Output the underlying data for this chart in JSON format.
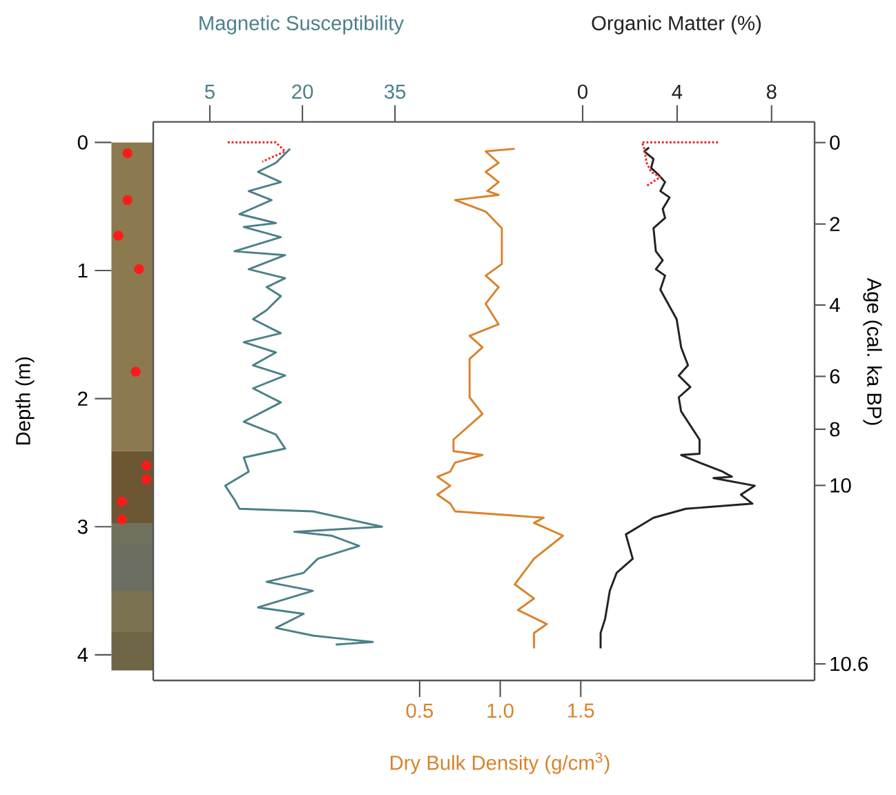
{
  "chart_data": [
    {
      "type": "line",
      "xlabel": "Magnetic Susceptibility",
      "ylabel": "Depth (m)",
      "xlim": [
        -4.17,
        38.11
      ],
      "xticks": [
        5,
        20,
        35
      ],
      "ylim": [
        4.2,
        -0.16
      ],
      "yticks": [
        0,
        1,
        2,
        3,
        4
      ],
      "series": [
        {
          "color": "#4b8088",
          "x": [
            18.0,
            15.7,
            12.8,
            16.5,
            11.3,
            15.0,
            9.8,
            15.7,
            10.5,
            16.5,
            9.0,
            17.2,
            11.3,
            17.2,
            14.2,
            16.5,
            14.2,
            12.0,
            16.5,
            10.5,
            15.7,
            12.0,
            17.2,
            12.0,
            16.5,
            10.5,
            15.7,
            17.2,
            10.5,
            11.3,
            7.5,
            9.0,
            9.8,
            21.7,
            32.9,
            18.7,
            24.7,
            29.2,
            22.5,
            20.2,
            14.2,
            21.7,
            12.8,
            20.2,
            15.7,
            21.7,
            31.4,
            25.4
          ],
          "values": [
            0.05,
            0.16,
            0.23,
            0.31,
            0.38,
            0.45,
            0.56,
            0.63,
            0.66,
            0.74,
            0.85,
            0.88,
            0.99,
            1.06,
            1.13,
            1.2,
            1.31,
            1.38,
            1.49,
            1.56,
            1.64,
            1.74,
            1.82,
            1.92,
            2.03,
            2.18,
            2.28,
            2.39,
            2.46,
            2.57,
            2.68,
            2.79,
            2.86,
            2.88,
            3.0,
            3.04,
            3.07,
            3.15,
            3.25,
            3.36,
            3.43,
            3.5,
            3.63,
            3.68,
            3.79,
            3.85,
            3.9,
            3.92
          ]
        },
        {
          "color": "#ee2222",
          "line_style": "dotted",
          "x": [
            7.9,
            15.7,
            17.2,
            13.5
          ],
          "values": [
            0.0,
            0.0,
            0.07,
            0.15
          ]
        }
      ]
    },
    {
      "type": "line",
      "xlabel": "Dry Bulk Density (g/cm$^{3}$)",
      "xlim": [
        0.466,
        1.503
      ],
      "xticks": [
        0.5,
        {
          "value": 1,
          "label": "1.0"
        },
        1.5
      ],
      "ylim": [
        4.2,
        -0.16
      ],
      "tick_labels": "x",
      "series": [
        {
          "color": "#d9822b",
          "x": [
            1.09,
            0.91,
            0.99,
            0.91,
            0.99,
            0.92,
            0.99,
            0.72,
            0.91,
            1.01,
            1.01,
            0.91,
            0.99,
            0.91,
            0.99,
            0.81,
            0.89,
            0.81,
            0.81,
            0.89,
            0.71,
            0.71,
            0.89,
            0.72,
            0.69,
            0.61,
            0.69,
            0.61,
            0.69,
            0.72,
            1.27,
            1.21,
            1.39,
            1.21,
            1.09,
            1.21,
            1.11,
            1.29,
            1.21,
            1.21
          ],
          "values": [
            0.05,
            0.07,
            0.16,
            0.23,
            0.31,
            0.38,
            0.41,
            0.45,
            0.54,
            0.67,
            0.95,
            1.04,
            1.13,
            1.26,
            1.42,
            1.51,
            1.6,
            1.69,
            1.99,
            2.12,
            2.32,
            2.41,
            2.44,
            2.5,
            2.57,
            2.61,
            2.68,
            2.75,
            2.82,
            2.88,
            2.93,
            2.97,
            3.07,
            3.25,
            3.45,
            3.56,
            3.65,
            3.76,
            3.83,
            3.95
          ]
        }
      ]
    },
    {
      "type": "line",
      "xlabel": "Organic Matter (%)",
      "y2label": "Age (cal. ka BP)",
      "xlim": [
        -0.06,
        9.82
      ],
      "xticks": [
        0,
        4,
        8
      ],
      "ylim": [
        4.2,
        -0.16
      ],
      "tick_labels": "x",
      "series": [
        {
          "color": "#222222",
          "x": [
            2.81,
            2.61,
            3.0,
            2.9,
            3.2,
            3.49,
            3.29,
            3.68,
            3.39,
            3.49,
            3.0,
            3.1,
            3.39,
            3.1,
            3.49,
            3.29,
            3.98,
            4.17,
            4.46,
            4.07,
            4.56,
            4.07,
            4.17,
            4.95,
            4.95,
            4.17,
            4.95,
            5.93,
            6.32,
            5.54,
            7.29,
            6.7,
            7.19,
            4.37,
            3.0,
            1.83,
            2.12,
            1.44,
            1.15,
            0.95,
            0.76,
            0.76
          ],
          "values": [
            0.04,
            0.07,
            0.13,
            0.2,
            0.25,
            0.31,
            0.38,
            0.43,
            0.52,
            0.59,
            0.67,
            0.85,
            0.92,
            0.99,
            1.04,
            1.15,
            1.38,
            1.6,
            1.74,
            1.82,
            1.91,
            1.99,
            2.1,
            2.32,
            2.43,
            2.44,
            2.5,
            2.57,
            2.61,
            2.62,
            2.68,
            2.75,
            2.82,
            2.86,
            2.93,
            3.06,
            3.25,
            3.36,
            3.5,
            3.72,
            3.83,
            3.95
          ]
        },
        {
          "color": "#ee2222",
          "line_style": "dotted",
          "x": [
            5.73,
            2.51,
            2.61,
            2.71,
            2.9,
            3.29,
            2.71
          ],
          "values": [
            0.0,
            0.0,
            0.05,
            0.16,
            0.23,
            0.27,
            0.34
          ]
        }
      ],
      "annotations": [
        "0",
        "2",
        "4",
        "6",
        "8",
        "10",
        "10.6"
      ]
    }
  ]
}
